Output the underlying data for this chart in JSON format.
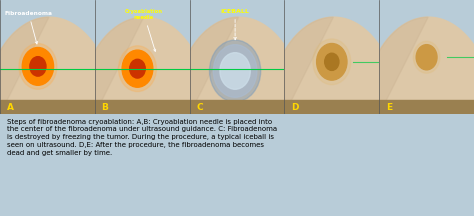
{
  "fig_width": 4.74,
  "fig_height": 2.16,
  "dpi": 100,
  "image_bg": "#0d0d0d",
  "skin_color_light": "#ddc8a8",
  "skin_color_mid": "#c8b090",
  "skin_color_dark": "#b89870",
  "panel_bar_color": "#9a8050",
  "text_bg_color": "#b8ccd8",
  "caption_text": "Steps of fibroadenoma cryoablation: A,B: Cryoablation needle is placed into\nthe center of the fibroadenoma under ultrasound guidance. C: Fibroadenoma\nis destroyed by freezing the tumor. During the procedure, a typical iceball is\nseen on ultrasound. D,E: After the procedure, the fibroadenoma becomes\ndead and get smaller by time.",
  "panel_labels": [
    "A",
    "B",
    "C",
    "D",
    "E"
  ],
  "panel_label_color": "#FFD700",
  "label_color_white": "#ffffff",
  "label_color_yellow": "#ffff00",
  "tumor_orange_outer": "#ff8800",
  "tumor_orange_glow": "#ffaa44",
  "tumor_orange_inner": "#cc3300",
  "tumor_dead_outer": "#cc9944",
  "tumor_dead_inner": "#aa7722",
  "iceball_outer_ring": "#7799bb",
  "iceball_mid": "#aabbd0",
  "iceball_inner": "#ccdde8",
  "green_line_color": "#00cc44",
  "separator_color": "#555555"
}
